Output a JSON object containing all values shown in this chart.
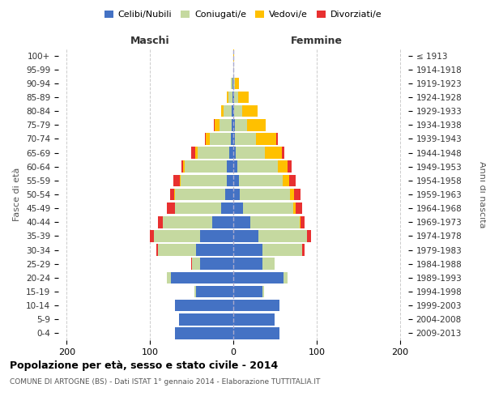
{
  "age_groups": [
    "0-4",
    "5-9",
    "10-14",
    "15-19",
    "20-24",
    "25-29",
    "30-34",
    "35-39",
    "40-44",
    "45-49",
    "50-54",
    "55-59",
    "60-64",
    "65-69",
    "70-74",
    "75-79",
    "80-84",
    "85-89",
    "90-94",
    "95-99",
    "100+"
  ],
  "birth_years": [
    "2009-2013",
    "2004-2008",
    "1999-2003",
    "1994-1998",
    "1989-1993",
    "1984-1988",
    "1979-1983",
    "1974-1978",
    "1969-1973",
    "1964-1968",
    "1959-1963",
    "1954-1958",
    "1949-1953",
    "1944-1948",
    "1939-1943",
    "1934-1938",
    "1929-1933",
    "1924-1928",
    "1919-1923",
    "1914-1918",
    "≤ 1913"
  ],
  "maschi": {
    "celibi": [
      70,
      65,
      70,
      45,
      75,
      40,
      45,
      40,
      25,
      15,
      10,
      8,
      8,
      5,
      3,
      2,
      2,
      1,
      1,
      0,
      0
    ],
    "coniugati": [
      0,
      0,
      0,
      2,
      5,
      10,
      45,
      55,
      60,
      55,
      60,
      55,
      50,
      38,
      25,
      15,
      10,
      5,
      2,
      0,
      0
    ],
    "vedovi": [
      0,
      0,
      0,
      0,
      0,
      0,
      0,
      0,
      0,
      0,
      1,
      1,
      2,
      3,
      5,
      5,
      3,
      2,
      0,
      0,
      0
    ],
    "divorziati": [
      0,
      0,
      0,
      0,
      0,
      1,
      2,
      5,
      5,
      10,
      5,
      8,
      2,
      5,
      1,
      1,
      0,
      0,
      0,
      0,
      0
    ]
  },
  "femmine": {
    "nubili": [
      55,
      50,
      55,
      35,
      60,
      35,
      35,
      30,
      20,
      12,
      8,
      7,
      5,
      3,
      2,
      2,
      1,
      1,
      0,
      0,
      0
    ],
    "coniugate": [
      0,
      0,
      0,
      2,
      5,
      15,
      48,
      58,
      60,
      60,
      60,
      52,
      48,
      35,
      25,
      15,
      10,
      5,
      2,
      0,
      0
    ],
    "vedove": [
      0,
      0,
      0,
      0,
      0,
      0,
      0,
      0,
      1,
      3,
      5,
      8,
      12,
      20,
      25,
      22,
      18,
      12,
      5,
      0,
      1
    ],
    "divorziate": [
      0,
      0,
      0,
      0,
      0,
      0,
      3,
      5,
      5,
      8,
      8,
      8,
      5,
      3,
      1,
      0,
      0,
      0,
      0,
      0,
      0
    ]
  },
  "colors": {
    "celibi": "#4472c4",
    "coniugati": "#c5d9a0",
    "vedovi": "#ffc000",
    "divorziati": "#e83030"
  },
  "xlim": [
    -210,
    210
  ],
  "xticks": [
    -200,
    -100,
    0,
    100,
    200
  ],
  "xticklabels": [
    "200",
    "100",
    "0",
    "100",
    "200"
  ],
  "title": "Popolazione per età, sesso e stato civile - 2014",
  "subtitle": "COMUNE DI ARTOGNE (BS) - Dati ISTAT 1° gennaio 2014 - Elaborazione TUTTITALIA.IT",
  "ylabel": "Fasce di età",
  "ylabel_right": "Anni di nascita",
  "maschi_label": "Maschi",
  "femmine_label": "Femmine",
  "legend_labels": [
    "Celibi/Nubili",
    "Coniugati/e",
    "Vedovi/e",
    "Divorziati/e"
  ],
  "background_color": "#ffffff",
  "grid_color": "#cccccc"
}
